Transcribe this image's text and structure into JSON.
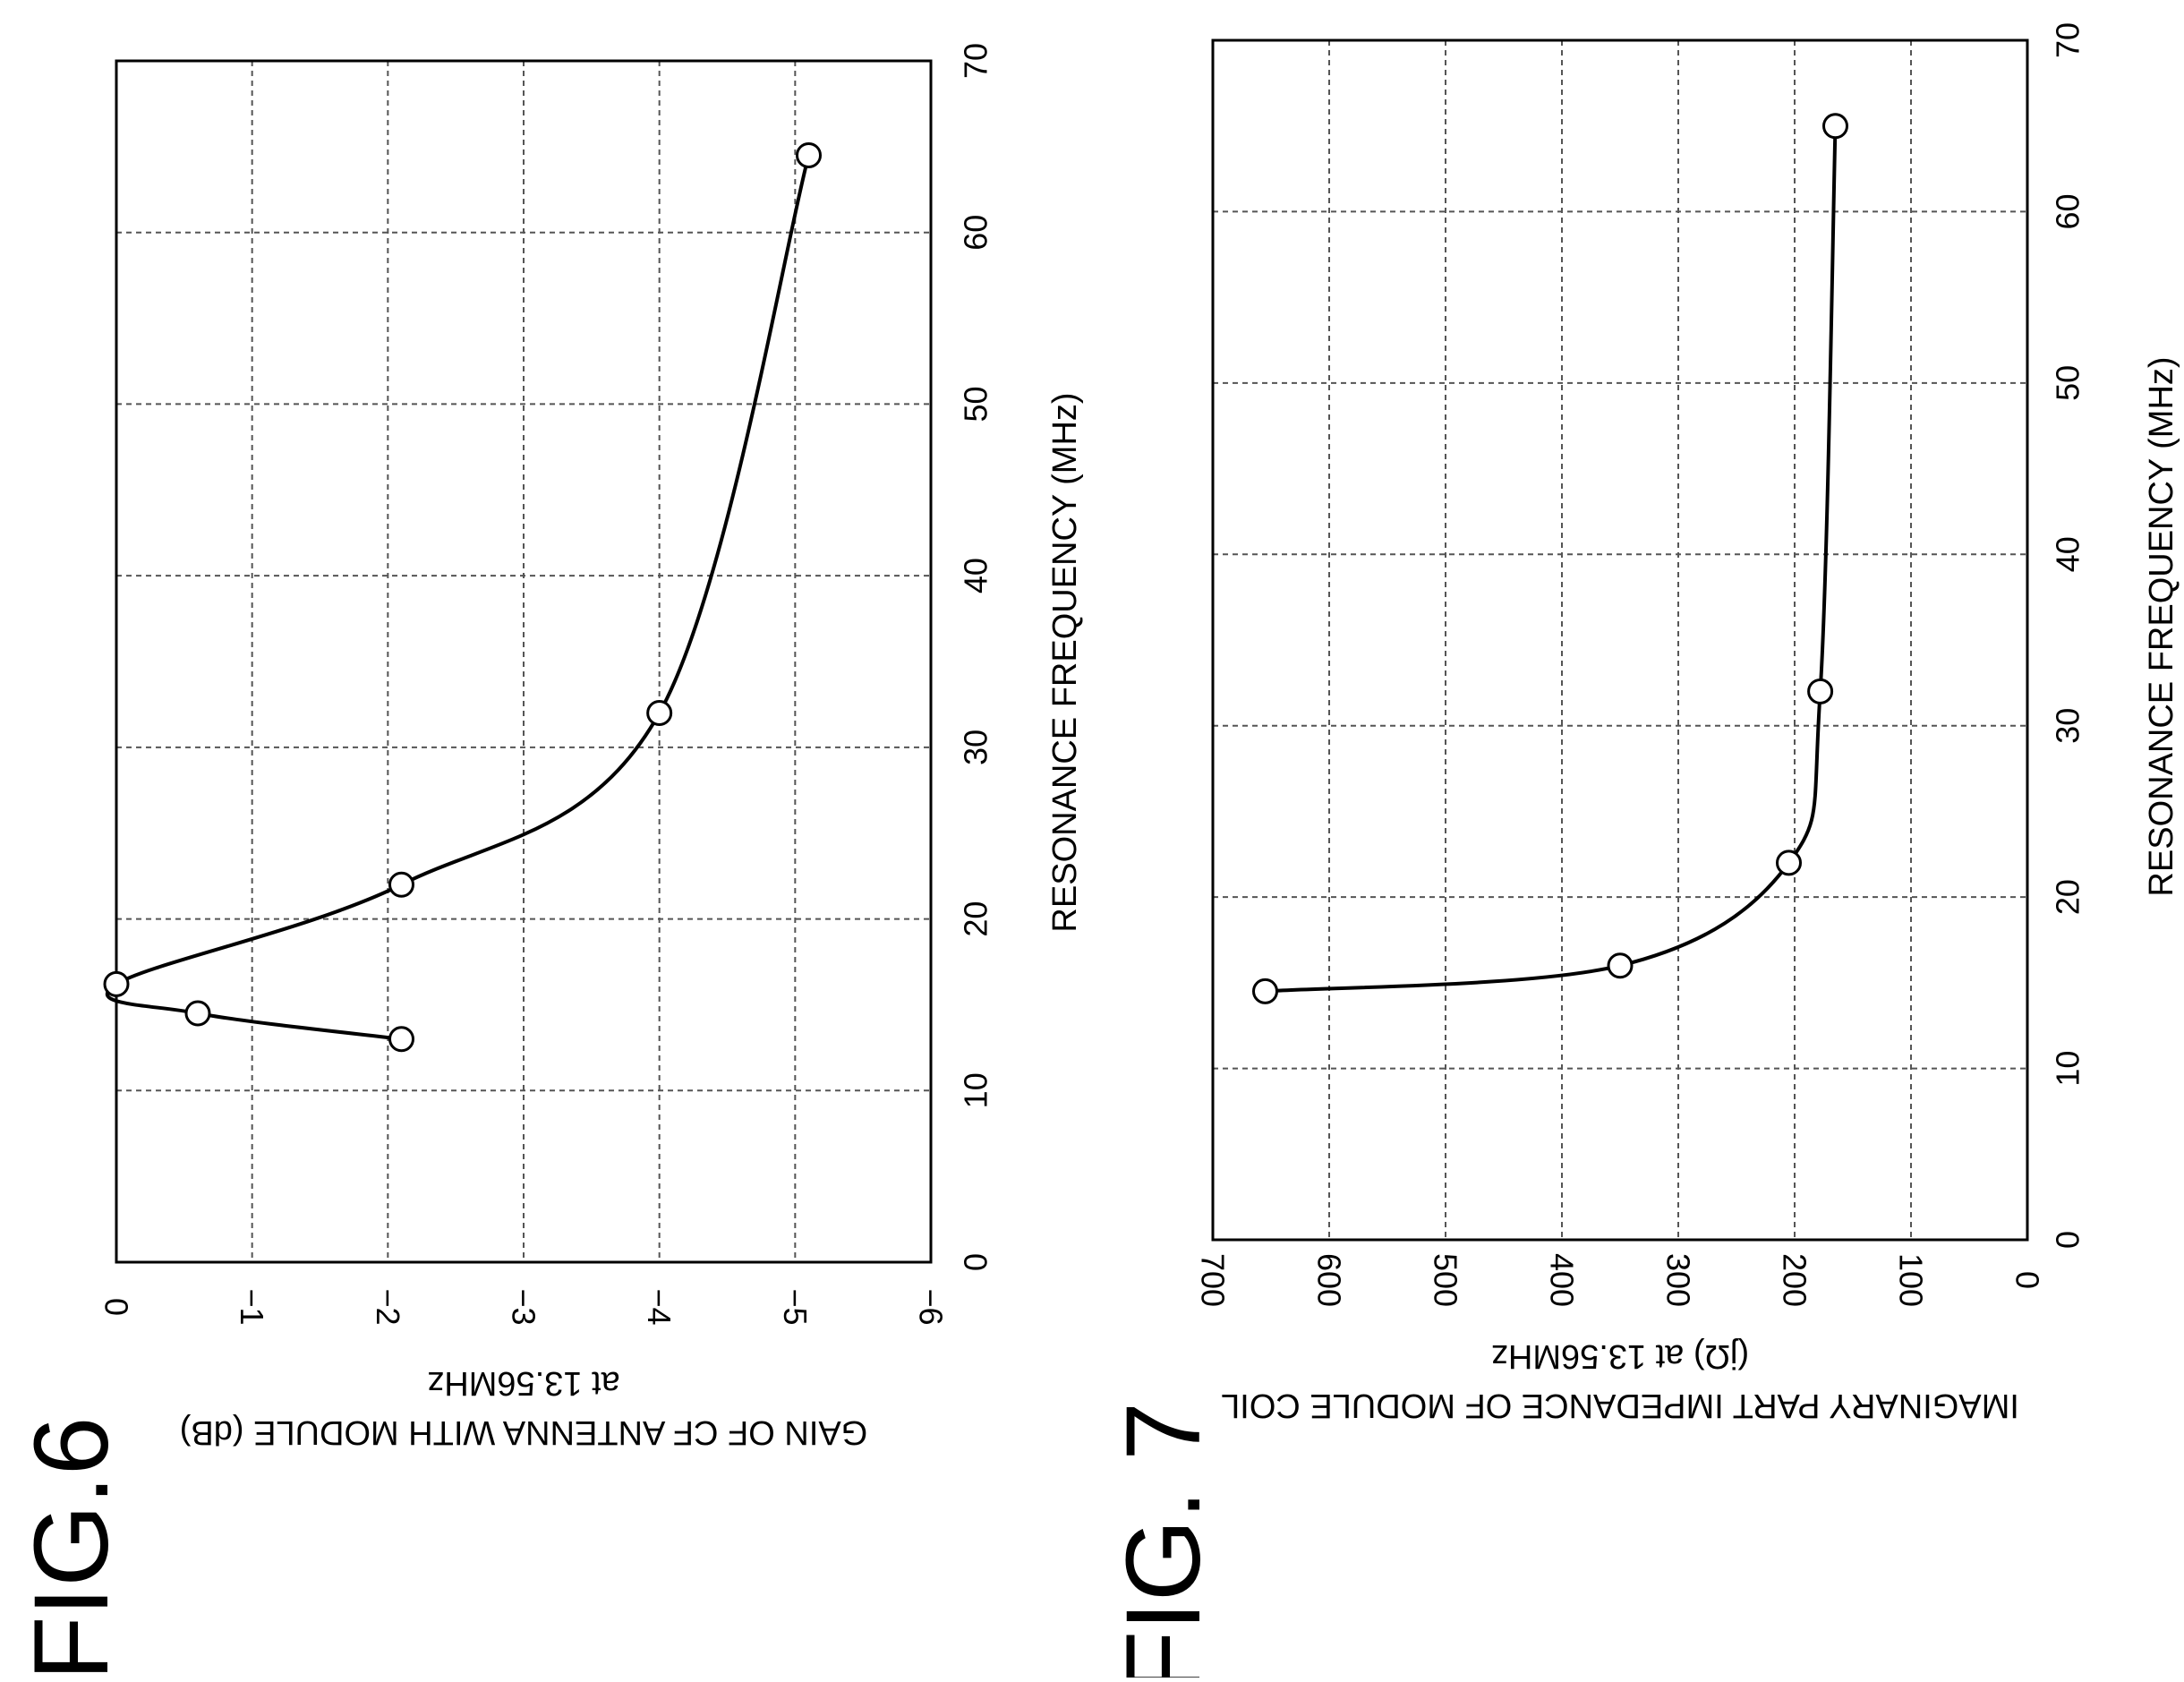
{
  "chart_data": [
    {
      "figure_label": "FIG.6",
      "type": "line",
      "xlabel": "RESONANCE FREQUENCY (MHz)",
      "ylabel": "GAIN OF CF ANTENNA WITH MODULE (dB)",
      "ylabel_sub": "at 13.56MHz",
      "xlim": [
        0,
        70
      ],
      "ylim": [
        -6,
        0
      ],
      "x_ticks": [
        0,
        10,
        20,
        30,
        40,
        50,
        60,
        70
      ],
      "y_ticks": [
        0,
        -1,
        -2,
        -3,
        -4,
        -5,
        -6
      ],
      "x_tick_labels": [
        "0",
        "10",
        "20",
        "30",
        "40",
        "50",
        "60",
        "70"
      ],
      "y_tick_labels": [
        "0",
        "−1",
        "−2",
        "−3",
        "−4",
        "−5",
        "−6"
      ],
      "grid": true,
      "orientation": "rotated 90 degrees clockwise",
      "series": [
        {
          "x": [
            13,
            14.5,
            16.2,
            22,
            32,
            64.5
          ],
          "y": [
            -2.1,
            -0.6,
            0,
            -2.1,
            -4,
            -5.1
          ]
        }
      ]
    },
    {
      "figure_label": "FIG. 7",
      "type": "line",
      "xlabel": "RESONANCE FREQUENCY (MHz)",
      "ylabel": "IMAGINARY PART IMPEDANCE OF MODULE COIL",
      "ylabel_sub": "(jΩ) at 13.56MHz",
      "xlim": [
        0,
        70
      ],
      "ylim": [
        0,
        700
      ],
      "x_ticks": [
        0,
        10,
        20,
        30,
        40,
        50,
        60,
        70
      ],
      "y_ticks": [
        0,
        100,
        200,
        300,
        400,
        500,
        600,
        700
      ],
      "x_tick_labels": [
        "0",
        "10",
        "20",
        "30",
        "40",
        "50",
        "60",
        "70"
      ],
      "y_tick_labels": [
        "0",
        "100",
        "200",
        "300",
        "400",
        "500",
        "600",
        "700"
      ],
      "grid": true,
      "orientation": "rotated 90 degrees clockwise",
      "series": [
        {
          "x": [
            14.5,
            16,
            22,
            32,
            65
          ],
          "y": [
            655,
            350,
            205,
            178,
            165
          ]
        }
      ]
    }
  ]
}
